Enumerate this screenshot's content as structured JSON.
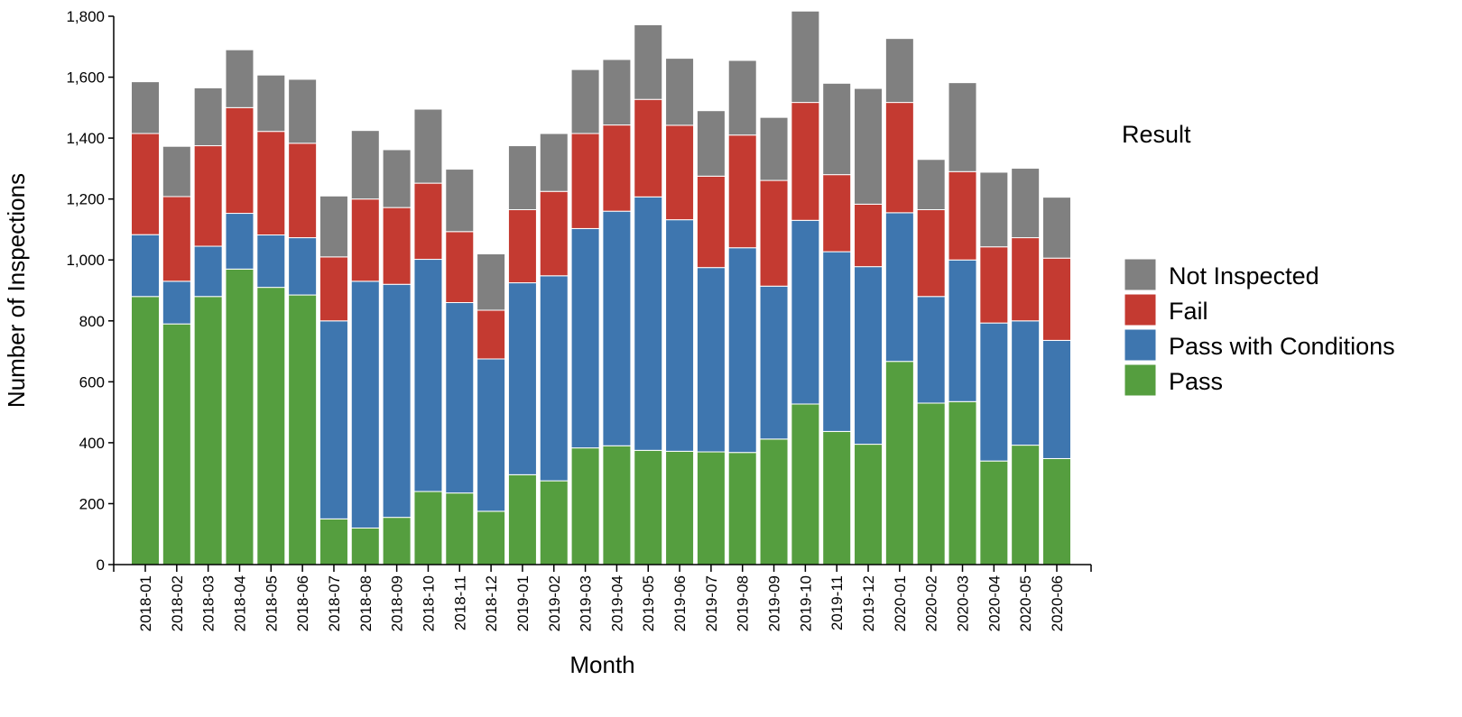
{
  "chart_data": {
    "type": "bar",
    "stacked": true,
    "title": "",
    "xlabel": "Month",
    "ylabel": "Number of Inspections",
    "ylim": [
      0,
      1800
    ],
    "yticks": [
      0,
      200,
      400,
      600,
      800,
      1000,
      1200,
      1400,
      1600,
      1800
    ],
    "ytick_labels": [
      "0",
      "200",
      "400",
      "600",
      "800",
      "1,000",
      "1,200",
      "1,400",
      "1,600",
      "1,800"
    ],
    "grid": false,
    "legend": {
      "title": "Result",
      "placement": "right",
      "order": [
        "Not Inspected",
        "Fail",
        "Pass with Conditions",
        "Pass"
      ]
    },
    "categories": [
      "2018-01",
      "2018-02",
      "2018-03",
      "2018-04",
      "2018-05",
      "2018-06",
      "2018-07",
      "2018-08",
      "2018-09",
      "2018-10",
      "2018-11",
      "2018-12",
      "2019-01",
      "2019-02",
      "2019-03",
      "2019-04",
      "2019-05",
      "2019-06",
      "2019-07",
      "2019-08",
      "2019-09",
      "2019-10",
      "2019-11",
      "2019-12",
      "2020-01",
      "2020-02",
      "2020-03",
      "2020-04",
      "2020-05",
      "2020-06"
    ],
    "series": [
      {
        "name": "Pass",
        "color": "#559e3f",
        "values": [
          880,
          790,
          880,
          970,
          910,
          885,
          150,
          120,
          155,
          240,
          235,
          175,
          295,
          275,
          383,
          390,
          375,
          372,
          370,
          368,
          412,
          527,
          437,
          395,
          667,
          530,
          535,
          340,
          392,
          348
        ]
      },
      {
        "name": "Pass with Conditions",
        "color": "#3e76af",
        "values": [
          203,
          140,
          165,
          183,
          172,
          188,
          650,
          810,
          765,
          762,
          625,
          500,
          630,
          673,
          720,
          770,
          832,
          760,
          605,
          672,
          502,
          603,
          590,
          583,
          488,
          350,
          465,
          453,
          408,
          388
        ]
      },
      {
        "name": "Fail",
        "color": "#c43a31",
        "values": [
          332,
          278,
          330,
          347,
          340,
          310,
          210,
          270,
          252,
          250,
          233,
          160,
          240,
          277,
          312,
          283,
          320,
          310,
          300,
          370,
          347,
          387,
          253,
          205,
          362,
          285,
          290,
          250,
          273,
          270
        ]
      },
      {
        "name": "Not Inspected",
        "color": "#808080",
        "values": [
          170,
          165,
          190,
          190,
          185,
          210,
          200,
          225,
          190,
          243,
          205,
          185,
          210,
          190,
          210,
          215,
          245,
          220,
          215,
          245,
          207,
          300,
          300,
          380,
          210,
          165,
          292,
          245,
          228,
          200
        ]
      }
    ]
  }
}
